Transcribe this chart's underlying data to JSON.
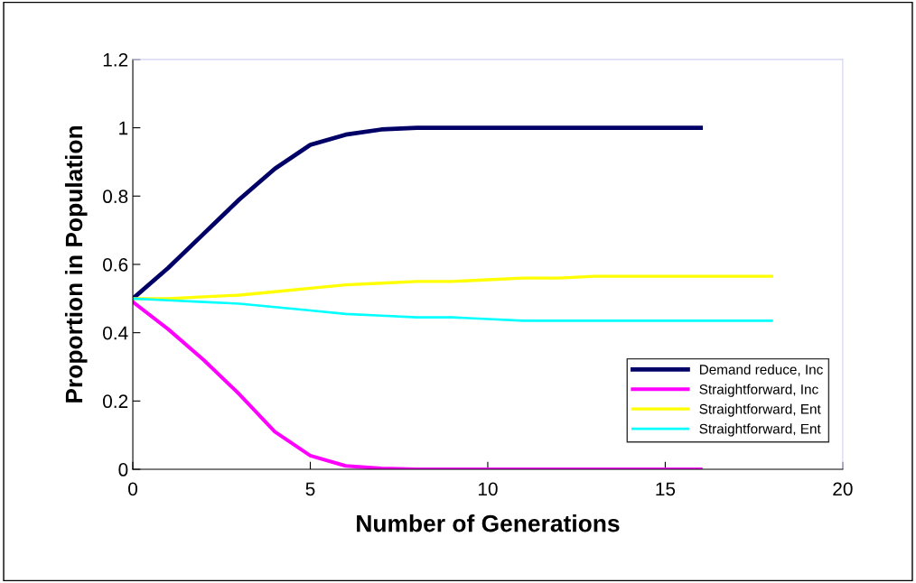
{
  "chart_data": {
    "type": "line",
    "xlabel": "Number of Generations",
    "ylabel": "Proportion in Population",
    "xlim": [
      0,
      20
    ],
    "xticks": [
      0,
      5,
      10,
      15,
      20
    ],
    "ylim": [
      0,
      1.2
    ],
    "yticks": [
      0,
      0.2,
      0.4,
      0.6,
      0.8,
      1,
      1.2
    ],
    "grid": false,
    "legend": "right",
    "marker": "none",
    "line_style": "solid",
    "series": [
      {
        "name": "Demand reduce, Inc",
        "color": "#000066",
        "x": [
          0,
          1,
          2,
          3,
          4,
          5,
          6,
          7,
          8,
          9,
          10,
          11,
          12,
          13,
          14,
          15,
          16
        ],
        "values": [
          0.5,
          0.59,
          0.69,
          0.79,
          0.88,
          0.95,
          0.98,
          0.995,
          1,
          1,
          1,
          1,
          1,
          1,
          1,
          1,
          1
        ]
      },
      {
        "name": "Straightforward, Inc",
        "color": "#ff00ff",
        "x": [
          0,
          1,
          2,
          3,
          4,
          5,
          6,
          7,
          8,
          9,
          10,
          11,
          12,
          13,
          14,
          15,
          16
        ],
        "values": [
          0.49,
          0.41,
          0.32,
          0.22,
          0.11,
          0.04,
          0.01,
          0.003,
          0,
          0,
          0,
          0,
          0,
          0,
          0,
          0,
          0
        ]
      },
      {
        "name": "Straightforward, Ent",
        "color": "#ffff00",
        "x": [
          0,
          1,
          2,
          3,
          4,
          5,
          6,
          7,
          8,
          9,
          10,
          11,
          12,
          13,
          14,
          15,
          16,
          17,
          18
        ],
        "values": [
          0.5,
          0.5,
          0.505,
          0.51,
          0.52,
          0.53,
          0.54,
          0.545,
          0.55,
          0.55,
          0.555,
          0.56,
          0.56,
          0.565,
          0.565,
          0.565,
          0.565,
          0.565,
          0.565
        ]
      },
      {
        "name": "Straightforward, Ent",
        "color": "#00ffff",
        "x": [
          0,
          1,
          2,
          3,
          4,
          5,
          6,
          7,
          8,
          9,
          10,
          11,
          12,
          13,
          14,
          15,
          16,
          17,
          18
        ],
        "values": [
          0.5,
          0.495,
          0.49,
          0.485,
          0.475,
          0.465,
          0.455,
          0.45,
          0.445,
          0.445,
          0.44,
          0.435,
          0.435,
          0.435,
          0.435,
          0.435,
          0.435,
          0.435,
          0.435
        ]
      }
    ]
  }
}
